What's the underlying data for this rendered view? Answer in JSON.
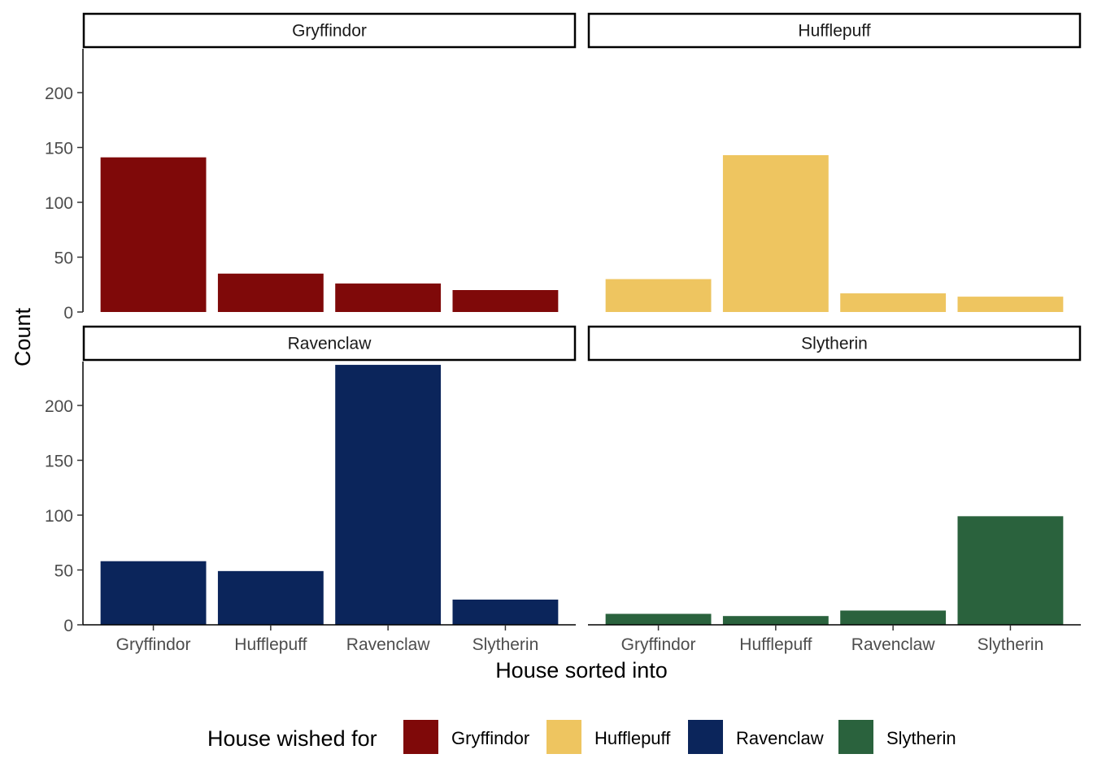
{
  "chart_data": {
    "type": "bar",
    "facet_by": "House wished for",
    "xlabel": "House sorted into",
    "ylabel": "Count",
    "ylim": [
      0,
      240
    ],
    "yticks": [
      0,
      50,
      100,
      150,
      200
    ],
    "grid": false,
    "legend_position": "bottom",
    "legend_title": "House wished for",
    "categories": [
      "Gryffindor",
      "Hufflepuff",
      "Ravenclaw",
      "Slytherin"
    ],
    "colors": {
      "Gryffindor": "#7f0909",
      "Hufflepuff": "#eec560",
      "Ravenclaw": "#0b255b",
      "Slytherin": "#2a623d"
    },
    "facets": [
      {
        "name": "Gryffindor",
        "values": [
          141,
          35,
          26,
          20
        ]
      },
      {
        "name": "Hufflepuff",
        "values": [
          30,
          143,
          17,
          14
        ]
      },
      {
        "name": "Ravenclaw",
        "values": [
          58,
          49,
          237,
          23
        ]
      },
      {
        "name": "Slytherin",
        "values": [
          10,
          8,
          13,
          99
        ]
      }
    ]
  }
}
